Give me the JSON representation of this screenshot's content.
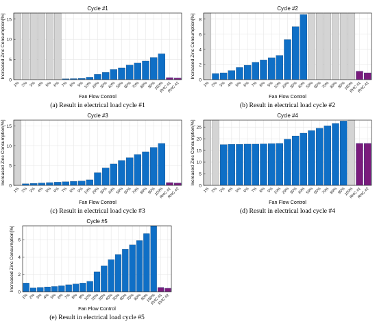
{
  "colors": {
    "bar": "#0f6fc6",
    "na": "#d4d4d4",
    "rhc": "#7a1b7c",
    "grid": "#e6e6e6",
    "axis": "#262626"
  },
  "shared": {
    "categories": [
      "1%",
      "2%",
      "3%",
      "4%",
      "5%",
      "6%",
      "7%",
      "8%",
      "9%",
      "10%",
      "20%",
      "30%",
      "40%",
      "50%",
      "60%",
      "70%",
      "80%",
      "90%",
      "100%",
      "RHC #1",
      "RHC #2"
    ],
    "xlabel": "Fan Flow Control",
    "ylabel": "Increased Zinc Consumption[%]"
  },
  "chart_data": [
    {
      "type": "bar",
      "title": "Cycle #1",
      "caption": "(a) Result in electrical load cycle #1",
      "ylim": [
        0,
        16.5
      ],
      "yticks": [
        0,
        5,
        10,
        15
      ],
      "grid": true,
      "values": [
        null,
        null,
        null,
        null,
        null,
        null,
        0.2,
        0.25,
        0.3,
        0.6,
        1.3,
        1.8,
        2.5,
        2.9,
        3.6,
        4.1,
        4.6,
        5.5,
        6.4,
        0.5,
        0.4
      ],
      "unavailable": [
        0,
        1,
        2,
        3,
        4,
        5
      ]
    },
    {
      "type": "bar",
      "title": "Cycle #2",
      "caption": "(b) Result in electrical load cycle #2",
      "ylim": [
        0,
        8.8
      ],
      "yticks": [
        0,
        2,
        4,
        6,
        8
      ],
      "grid": true,
      "values": [
        null,
        0.8,
        0.9,
        1.2,
        1.6,
        1.9,
        2.3,
        2.6,
        2.9,
        3.2,
        5.3,
        7.0,
        8.6,
        null,
        null,
        null,
        null,
        null,
        null,
        1.1,
        0.9
      ],
      "unavailable": [
        0,
        13,
        14,
        15,
        16,
        17,
        18
      ]
    },
    {
      "type": "bar",
      "title": "Cycle #3",
      "caption": "(c) Result in electrical load cycle #3",
      "ylim": [
        0,
        16.5
      ],
      "yticks": [
        0,
        5,
        10,
        15
      ],
      "grid": true,
      "values": [
        null,
        0.4,
        0.5,
        0.6,
        0.7,
        0.8,
        0.9,
        1.0,
        1.1,
        1.4,
        3.2,
        4.4,
        5.4,
        6.3,
        7.0,
        7.8,
        8.5,
        9.6,
        10.6,
        0.7,
        0.6
      ],
      "unavailable": [
        0
      ]
    },
    {
      "type": "bar",
      "title": "Cycle #4",
      "caption": "(d) Result in electrical load cycle #4",
      "ylim": [
        0,
        28
      ],
      "yticks": [
        0,
        5,
        10,
        15,
        20,
        25
      ],
      "grid": true,
      "values": [
        null,
        null,
        17.5,
        17.6,
        17.6,
        17.7,
        17.7,
        17.8,
        17.9,
        18.0,
        19.8,
        21.2,
        22.4,
        23.5,
        24.5,
        25.6,
        26.6,
        27.6,
        null,
        18.0,
        18.0
      ],
      "unavailable": [
        0,
        1,
        18
      ]
    },
    {
      "type": "bar",
      "title": "Cycle #5",
      "caption": "(e) Result in electrical load cycle #5",
      "ylim": [
        0,
        7.6
      ],
      "yticks": [
        0,
        2,
        4,
        6
      ],
      "grid": true,
      "values": [
        1.0,
        0.45,
        0.5,
        0.55,
        0.6,
        0.7,
        0.8,
        0.9,
        1.0,
        1.2,
        2.3,
        3.0,
        3.7,
        4.3,
        4.9,
        5.4,
        5.9,
        6.7,
        7.6,
        0.5,
        0.4
      ],
      "unavailable": []
    }
  ]
}
